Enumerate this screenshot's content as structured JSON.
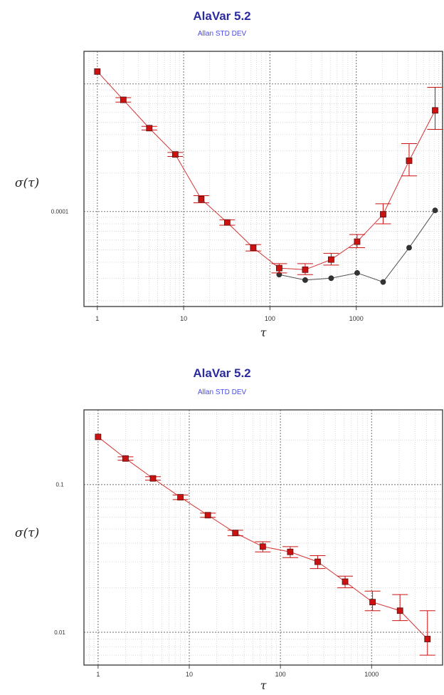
{
  "chart_data": [
    {
      "type": "line",
      "title": "AlaVar 5.2",
      "subtitle": "Allan STD DEV",
      "xlabel": "τ",
      "ylabel": "σ(τ)",
      "xscale": "log",
      "yscale": "log",
      "xlim": [
        0.7,
        10000
      ],
      "ylim": [
        1.8e-05,
        0.0018
      ],
      "x_ticks": [
        {
          "value": 1,
          "label": "1"
        },
        {
          "value": 10,
          "label": "10"
        },
        {
          "value": 100,
          "label": "100"
        },
        {
          "value": 1000,
          "label": "1000"
        }
      ],
      "y_ticks": [
        {
          "value": 0.0001,
          "label": "0.0001"
        }
      ],
      "grid": true,
      "series": [
        {
          "color": "#cc1111",
          "marker": "square",
          "error_bars": true,
          "x": [
            1,
            2,
            4,
            8,
            16,
            32,
            64,
            128,
            256,
            512,
            1024,
            2048,
            4096,
            8192
          ],
          "y": [
            0.00125,
            0.00075,
            0.00045,
            0.00028,
            0.000125,
            8.2e-05,
            5.2e-05,
            3.6e-05,
            3.5e-05,
            4.2e-05,
            5.8e-05,
            9.5e-05,
            0.00025,
            0.00062
          ],
          "err_low": [
            0.0,
            3e-05,
            1.5e-05,
            1e-05,
            8e-06,
            4e-06,
            3e-06,
            3e-06,
            3e-06,
            4e-06,
            6e-06,
            1.5e-05,
            6e-05,
            0.00018
          ],
          "err_high": [
            0.0,
            3e-05,
            1.5e-05,
            1e-05,
            8e-06,
            4e-06,
            3e-06,
            3e-06,
            4e-06,
            5e-06,
            8e-06,
            2e-05,
            9e-05,
            0.00032
          ]
        },
        {
          "color": "#333333",
          "marker": "circle",
          "error_bars": false,
          "x": [
            128,
            256,
            512,
            1024,
            2048,
            4096,
            8192
          ],
          "y": [
            3.2e-05,
            2.9e-05,
            3e-05,
            3.3e-05,
            2.8e-05,
            5.2e-05,
            0.000102
          ]
        }
      ]
    },
    {
      "type": "line",
      "title": "AlaVar 5.2",
      "subtitle": "Allan STD DEV",
      "xlabel": "τ",
      "ylabel": "σ(τ)",
      "xscale": "log",
      "yscale": "log",
      "xlim": [
        0.7,
        6000
      ],
      "ylim": [
        0.006,
        0.32
      ],
      "x_ticks": [
        {
          "value": 1,
          "label": "1"
        },
        {
          "value": 10,
          "label": "10"
        },
        {
          "value": 100,
          "label": "100"
        },
        {
          "value": 1000,
          "label": "1000"
        }
      ],
      "y_ticks": [
        {
          "value": 0.1,
          "label": "0.1"
        },
        {
          "value": 0.01,
          "label": "0.01"
        }
      ],
      "grid": true,
      "series": [
        {
          "color": "#cc1111",
          "marker": "square",
          "error_bars": true,
          "x": [
            1,
            2,
            4,
            8,
            16,
            32,
            64,
            128,
            256,
            512,
            1024,
            2048,
            4096
          ],
          "y": [
            0.21,
            0.15,
            0.11,
            0.082,
            0.062,
            0.047,
            0.038,
            0.035,
            0.03,
            0.022,
            0.016,
            0.014,
            0.009
          ],
          "err_low": [
            0.0,
            0.004,
            0.003,
            0.003,
            0.002,
            0.002,
            0.003,
            0.003,
            0.003,
            0.002,
            0.002,
            0.002,
            0.002
          ],
          "err_high": [
            0.0,
            0.004,
            0.003,
            0.003,
            0.002,
            0.002,
            0.003,
            0.003,
            0.003,
            0.002,
            0.003,
            0.004,
            0.005
          ]
        }
      ]
    }
  ]
}
